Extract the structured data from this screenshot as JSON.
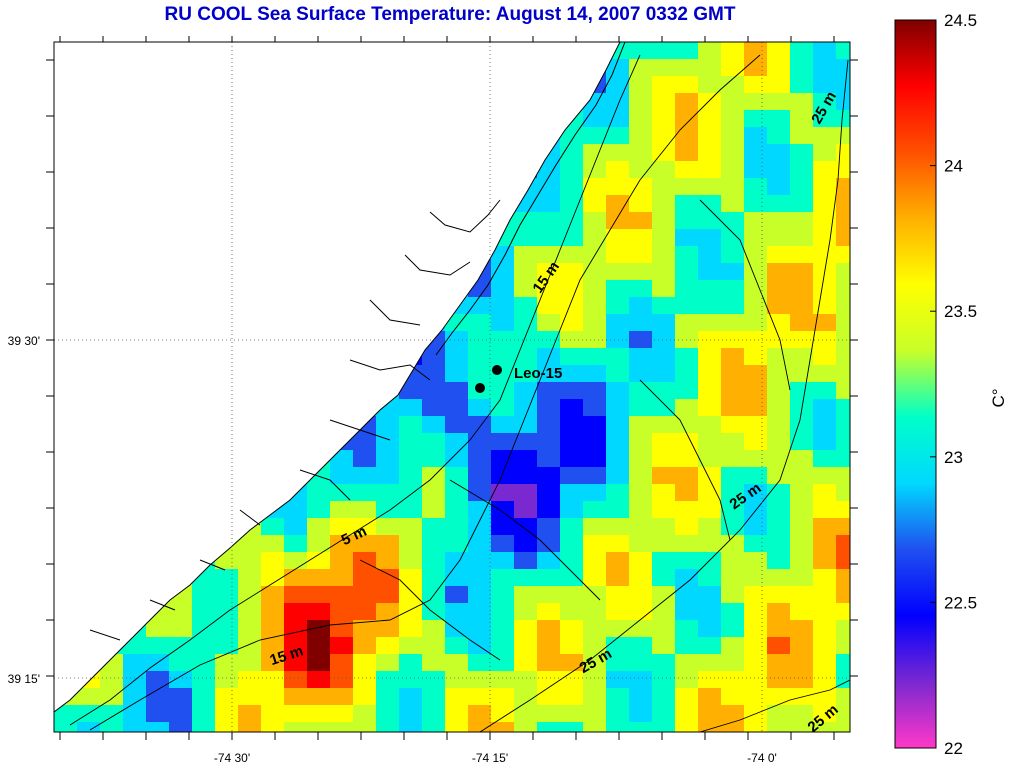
{
  "title": "RU COOL  Sea Surface Temperature:  August 14, 2007 0332 GMT",
  "axes": {
    "x_ticks": [
      "-74 30'",
      "-74 15'",
      "-74 0'"
    ],
    "y_ticks": [
      "39 30'",
      "39 15'"
    ]
  },
  "colorbar": {
    "unit_label": "C°",
    "ticks": [
      "24.5",
      "24",
      "23.5",
      "23",
      "22.5",
      "22"
    ],
    "range": [
      22,
      24.5
    ],
    "colors": [
      "#ff38c8",
      "#7a28d0",
      "#0000ff",
      "#2050f0",
      "#00d8ff",
      "#00ffc8",
      "#c8ff28",
      "#ffff00",
      "#ffb000",
      "#ff5000",
      "#ff0000",
      "#800000"
    ]
  },
  "map": {
    "land_color": "#ffffff",
    "contour_color": "#000000",
    "station": {
      "label": "Leo-15"
    },
    "isobath_labels": [
      "5 m",
      "15 m",
      "15 m",
      "25 m",
      "25 m",
      "25 m",
      "25 m"
    ]
  }
}
